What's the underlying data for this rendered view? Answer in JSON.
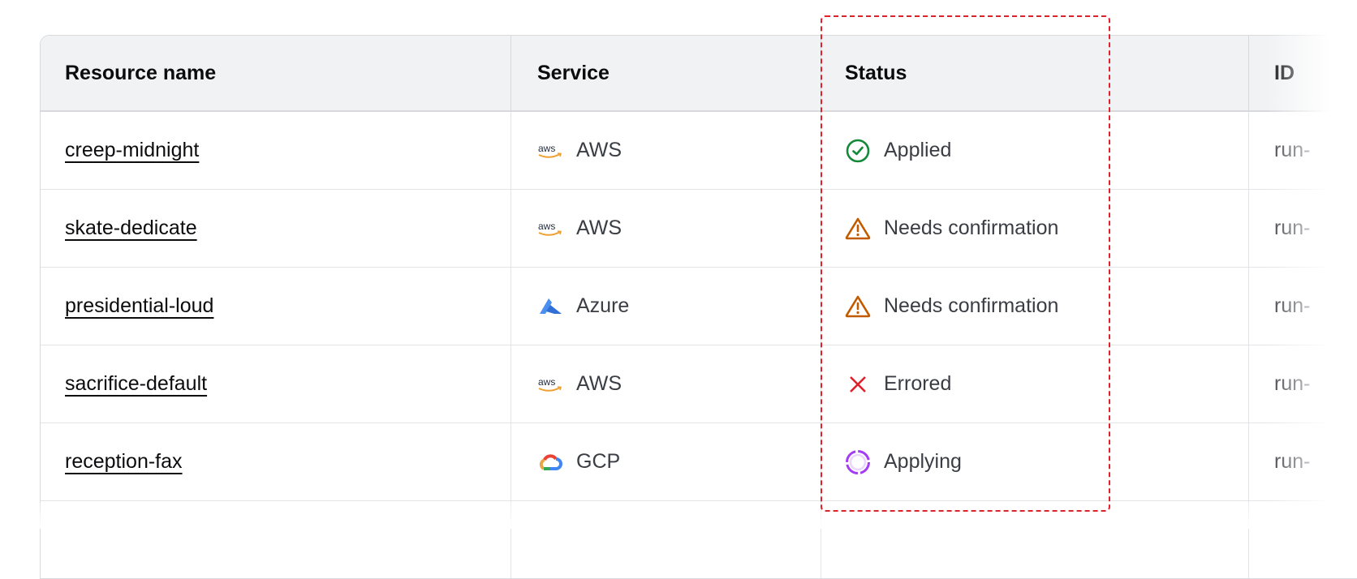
{
  "columns": [
    "Resource name",
    "Service",
    "Status",
    "ID"
  ],
  "rows": [
    {
      "name": "creep-midnight",
      "service": "AWS",
      "service_icon": "aws-logo-icon",
      "status": "Applied",
      "status_icon": "check-circle-icon",
      "id": "run-"
    },
    {
      "name": "skate-dedicate",
      "service": "AWS",
      "service_icon": "aws-logo-icon",
      "status": "Needs confirmation",
      "status_icon": "warning-triangle-icon",
      "id": "run-"
    },
    {
      "name": "presidential-loud",
      "service": "Azure",
      "service_icon": "azure-logo-icon",
      "status": "Needs confirmation",
      "status_icon": "warning-triangle-icon",
      "id": "run-"
    },
    {
      "name": "sacrifice-default",
      "service": "AWS",
      "service_icon": "aws-logo-icon",
      "status": "Errored",
      "status_icon": "x-icon",
      "id": "run-"
    },
    {
      "name": "reception-fax",
      "service": "GCP",
      "service_icon": "gcp-logo-icon",
      "status": "Applying",
      "status_icon": "spinner-icon",
      "id": "run-"
    }
  ],
  "colors": {
    "applied": "#15893a",
    "warning": "#c25a00",
    "error": "#e0202a",
    "applying": "#a43bf5",
    "highlight": "#e0202a"
  }
}
